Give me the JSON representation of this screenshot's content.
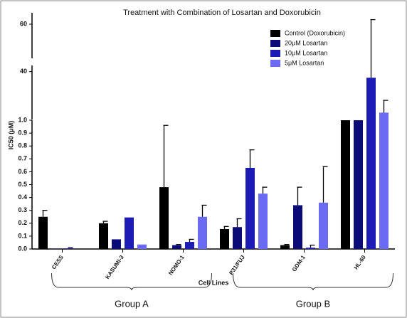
{
  "chart_data": {
    "type": "bar",
    "title": "Treatment with Combination of Losartan and Doxorubicin",
    "xlabel": "Cell Lines",
    "ylabel": "IC50 (μM)",
    "categories": [
      "CESS",
      "KASUMI-3",
      "NOMO-1",
      "P31/FUJ",
      "GDM-1",
      "HL-60"
    ],
    "series": [
      {
        "name": "Control (Doxorubicin)",
        "color": "#000000",
        "values": [
          0.25,
          0.2,
          0.48,
          0.155,
          0.03,
          1
        ],
        "errors": [
          0.05,
          0.015,
          0.48,
          0.02,
          0.005,
          null
        ]
      },
      {
        "name": "20μM Losartan",
        "color": "#0b0b78",
        "values": [
          0.003,
          0.075,
          0.03,
          0.17,
          0.34,
          1
        ],
        "errors": [
          null,
          null,
          0.005,
          0.065,
          0.14,
          null
        ]
      },
      {
        "name": "10μM Losartan",
        "color": "#1c1cb4",
        "values": [
          0.005,
          0.245,
          0.055,
          0.63,
          0.01,
          35
        ],
        "errors": [
          0.005,
          null,
          0.02,
          0.14,
          0.02,
          27
        ]
      },
      {
        "name": "5μM Losartan",
        "color": "#6a6af2",
        "values": [
          0,
          0.035,
          0.25,
          0.43,
          0.36,
          6.6
        ],
        "errors": [
          null,
          null,
          0.09,
          0.05,
          0.28,
          10
        ]
      }
    ],
    "y_segments": [
      {
        "ylim": [
          0,
          1
        ],
        "yticks": [
          {
            "value": 0,
            "label": "0.0"
          },
          0.1,
          0.2,
          0.3,
          0.4,
          0.5,
          0.6,
          0.7,
          0.8,
          0.9,
          {
            "value": 1,
            "label": "1.0"
          }
        ]
      },
      {
        "ylim": [
          1,
          45
        ],
        "yticks": [
          40
        ]
      },
      {
        "ylim": [
          45,
          65
        ],
        "yticks": [
          60
        ]
      }
    ],
    "legend": "upper-right",
    "groups": [
      {
        "label": "Group A",
        "categories": [
          "CESS",
          "KASUMI-3",
          "NOMO-1"
        ]
      },
      {
        "label": "Group B",
        "categories": [
          "P31/FUJ",
          "GDM-1",
          "HL-60"
        ]
      }
    ]
  }
}
